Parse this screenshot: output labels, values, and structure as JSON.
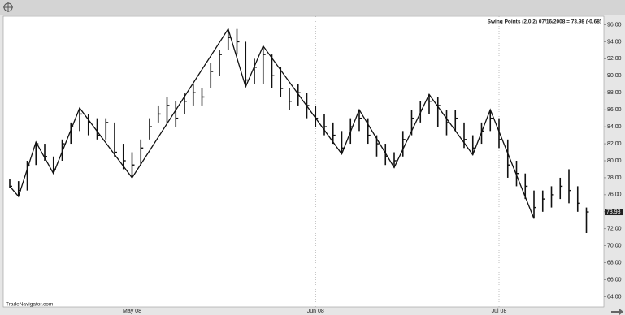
{
  "chart_data": {
    "type": "ohlc",
    "legend": "Swing Points (2,0,2)  07/16/2008 = 73.98 (-0.68)",
    "source": "TradeNavigator.com",
    "categories": [
      null,
      null,
      null,
      null,
      null,
      null,
      null,
      null,
      null,
      null,
      null,
      null,
      null,
      null,
      "May 08",
      null,
      null,
      null,
      null,
      null,
      null,
      null,
      null,
      null,
      null,
      null,
      null,
      null,
      null,
      null,
      null,
      null,
      null,
      null,
      null,
      "Jun 08",
      null,
      null,
      null,
      null,
      null,
      null,
      null,
      null,
      null,
      null,
      null,
      null,
      null,
      null,
      null,
      null,
      null,
      null,
      null,
      null,
      "Jul 08",
      null,
      null,
      null,
      null,
      null,
      null,
      null,
      null,
      null,
      null
    ],
    "high": [
      77.8,
      77.6,
      80.0,
      82.2,
      82.0,
      80.5,
      82.5,
      84.5,
      86.2,
      85.5,
      85.0,
      85.0,
      84.5,
      82.0,
      81.0,
      82.5,
      85.0,
      86.5,
      87.5,
      87.0,
      88.0,
      89.0,
      88.5,
      91.5,
      93.0,
      95.5,
      95.5,
      94.0,
      92.0,
      93.5,
      92.5,
      91.0,
      88.5,
      89.0,
      88.0,
      86.5,
      85.5,
      84.5,
      83.5,
      85.0,
      86.0,
      85.0,
      83.0,
      82.0,
      81.0,
      83.5,
      86.0,
      87.0,
      87.8,
      87.5,
      86.0,
      86.0,
      84.5,
      83.0,
      84.5,
      86.0,
      85.0,
      82.5,
      80.0,
      78.5,
      76.5,
      76.5,
      77.0,
      78.0,
      79.0,
      77.0,
      74.5
    ],
    "low": [
      76.8,
      75.8,
      76.5,
      79.5,
      80.0,
      78.5,
      80.0,
      82.0,
      83.5,
      83.0,
      82.5,
      82.5,
      80.5,
      79.0,
      78.0,
      79.5,
      82.5,
      84.5,
      84.5,
      84.0,
      85.5,
      86.5,
      86.5,
      88.5,
      90.0,
      93.0,
      92.5,
      88.7,
      89.0,
      89.0,
      88.5,
      87.5,
      86.0,
      86.5,
      85.0,
      84.0,
      83.0,
      82.0,
      80.8,
      82.0,
      83.5,
      82.0,
      80.5,
      79.5,
      79.2,
      80.5,
      83.0,
      84.5,
      85.5,
      84.0,
      83.0,
      83.5,
      81.5,
      80.7,
      82.0,
      83.5,
      81.5,
      78.0,
      77.0,
      75.5,
      73.2,
      74.0,
      74.5,
      75.5,
      75.0,
      74.0,
      71.5
    ],
    "close": [
      77.0,
      76.5,
      79.5,
      82.0,
      80.5,
      79.0,
      82.0,
      84.0,
      85.5,
      84.5,
      83.0,
      84.5,
      81.0,
      80.0,
      79.5,
      81.5,
      84.0,
      85.5,
      86.5,
      85.0,
      87.0,
      88.0,
      87.5,
      90.5,
      92.5,
      94.5,
      94.0,
      89.5,
      91.0,
      92.5,
      90.0,
      88.5,
      87.0,
      88.0,
      86.5,
      85.0,
      84.0,
      83.0,
      81.5,
      84.0,
      85.0,
      83.0,
      82.0,
      80.5,
      80.0,
      82.5,
      85.0,
      86.0,
      87.0,
      86.5,
      84.5,
      85.0,
      82.5,
      81.5,
      83.5,
      85.0,
      82.5,
      79.5,
      78.5,
      77.0,
      74.5,
      75.5,
      76.0,
      77.0,
      76.5,
      75.0,
      73.98
    ],
    "close_labels": [
      null,
      null,
      null,
      null,
      null,
      null,
      null,
      null,
      null,
      null,
      null,
      null,
      null,
      null,
      null,
      null,
      null,
      null,
      null,
      null,
      null,
      null,
      null,
      null,
      null,
      null,
      null,
      null,
      null,
      null,
      null,
      null,
      null,
      null,
      null,
      null,
      null,
      null,
      null,
      null,
      null,
      null,
      null,
      null,
      null,
      null,
      null,
      null,
      null,
      null,
      null,
      null,
      null,
      null,
      null,
      null,
      null,
      null,
      null,
      null,
      null,
      null,
      null,
      null,
      null,
      null,
      "73.98"
    ],
    "swing": {
      "x": [
        0,
        1,
        3,
        5,
        8,
        14,
        25,
        27,
        29,
        38,
        40,
        44,
        48,
        53,
        55,
        60
      ],
      "values": [
        77.0,
        75.8,
        82.2,
        78.5,
        86.2,
        78.0,
        95.5,
        88.7,
        93.5,
        80.8,
        86.0,
        79.2,
        87.8,
        80.7,
        86.0,
        73.2
      ]
    },
    "ylim": [
      63,
      97
    ],
    "yticks": [
      {
        "value": 64,
        "label": "64.00"
      },
      {
        "value": 66,
        "label": "66.00"
      },
      {
        "value": 68,
        "label": "68.00"
      },
      {
        "value": 70,
        "label": "70.00"
      },
      {
        "value": 72,
        "label": "72.00"
      },
      {
        "value": 74,
        "label": "74.00"
      },
      {
        "value": 76,
        "label": "76.00"
      },
      {
        "value": 78,
        "label": "78.00"
      },
      {
        "value": 80,
        "label": "80.00"
      },
      {
        "value": 82,
        "label": "82.00"
      },
      {
        "value": 84,
        "label": "84.00"
      },
      {
        "value": 86,
        "label": "86.00"
      },
      {
        "value": 88,
        "label": "88.00"
      },
      {
        "value": 90,
        "label": "90.00"
      },
      {
        "value": 92,
        "label": "92.00"
      },
      {
        "value": 94,
        "label": "94.00"
      },
      {
        "value": 96,
        "label": "96.00"
      }
    ],
    "color": "#111111"
  }
}
